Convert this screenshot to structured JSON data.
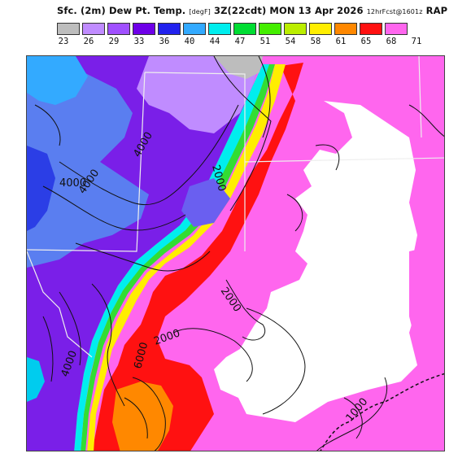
{
  "title": {
    "main": "Sfc. (2m) Dew Pt. Temp.",
    "units": "[degF]",
    "time": "3Z(22cdt) MON 13 Apr 2026",
    "forecast": "12hrFcst@1601z",
    "model": "RAP"
  },
  "legend": {
    "colors": [
      "#bdbdbd",
      "#c08cff",
      "#a050ff",
      "#6e00e8",
      "#2222ee",
      "#33aaff",
      "#00eeee",
      "#00dd33",
      "#44ee00",
      "#bbee00",
      "#ffee00",
      "#ff8800",
      "#ff1111",
      "#ff66ee"
    ],
    "labels": [
      "23",
      "26",
      "29",
      "33",
      "36",
      "40",
      "44",
      "47",
      "51",
      "54",
      "58",
      "61",
      "65",
      "68",
      "71"
    ]
  },
  "contour_labels": [
    "4000",
    "4000",
    "4000",
    "2000",
    "2000",
    "2000",
    "4000",
    "1000",
    "6000"
  ]
}
